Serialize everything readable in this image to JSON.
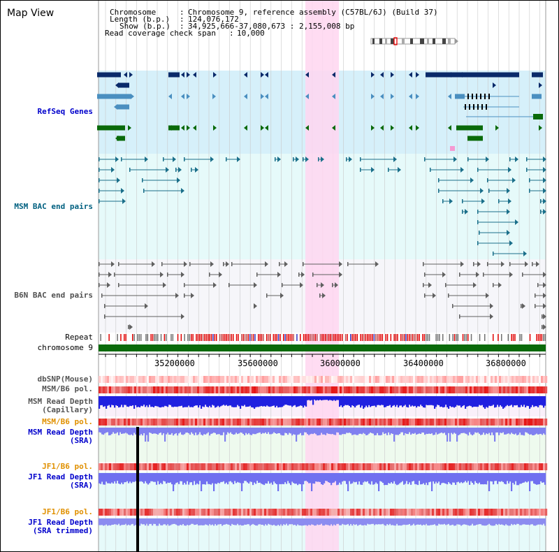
{
  "header": {
    "title": "Map View",
    "chromosome_label": "Chromosome",
    "chromosome_value": "Chromosome 9, reference assembly (C57BL/6J) (Build 37)",
    "length_label": "Length (b.p.)",
    "length_value": "124,076,172",
    "show_label": "Show (b.p.)",
    "show_value": "34,925,666-37,080,673 : 2,155,008 bp",
    "coverage_label": "Read coverage check span",
    "coverage_value": "10,000"
  },
  "axis": {
    "ticks": [
      "35200000",
      "35600000",
      "36000000",
      "36400000",
      "36800000"
    ]
  },
  "tracks": {
    "refseq": "RefSeq Genes",
    "msm_bac": "MSM BAC end pairs",
    "b6n_bac": "B6N BAC end pairs",
    "repeat": "Repeat",
    "chromosome": "chromosome 9",
    "dbsnp": "dbSNP(Mouse)",
    "msm_b6_pol_1": "MSM/B6 pol.",
    "msm_read_cap": "MSM Read Depth\n(Capillary)",
    "msm_b6_pol_2": "MSM/B6 pol.",
    "msm_read_sra": "MSM Read Depth\n(SRA)",
    "jf1_b6_pol_1": "JF1/B6 pol.",
    "jf1_read_sra": "JF1 Read Depth\n(SRA)",
    "jf1_b6_pol_2": "JF1/B6 pol.",
    "jf1_read_trim": "JF1 Read Depth\n(SRA trimmed)"
  },
  "colors": {
    "refseq_label": "#0000cc",
    "msm_bac_label": "#006080",
    "b6n_label": "#505050",
    "orange_label": "#e09000",
    "blue_label": "#0000cc",
    "gray_label": "#555555",
    "highlight": "#ffd6f0",
    "gene_dark": "#0a2a6a",
    "gene_mid": "#4a8fc0",
    "gene_green": "#0a6a0a"
  }
}
